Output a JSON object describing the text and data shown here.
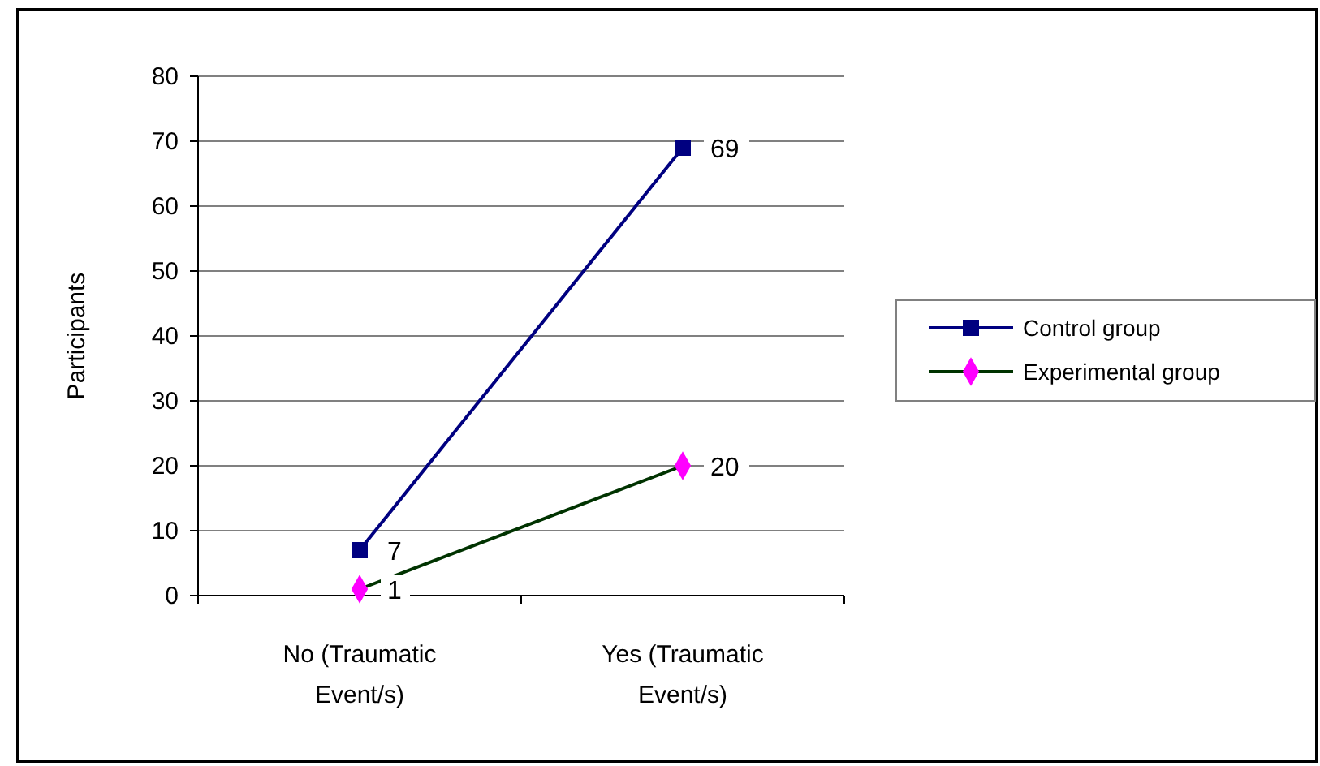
{
  "chart_data": {
    "type": "line",
    "ylabel": "Participants",
    "categories": [
      "No (Traumatic Event/s)",
      "Yes (Traumatic Event/s)"
    ],
    "series": [
      {
        "name": "Control group",
        "color": "#000080",
        "colors": [
          "#000080",
          "#000080"
        ],
        "marker": "square",
        "values": [
          7,
          69
        ]
      },
      {
        "name": "Experimental group",
        "color": "#003300",
        "colors": [
          "#ff00ff",
          "#ff00ff"
        ],
        "marker": "diamond",
        "values": [
          1,
          20
        ]
      }
    ],
    "ylim": [
      0,
      80
    ],
    "yticks": [
      0,
      10,
      20,
      30,
      40,
      50,
      60,
      70,
      80
    ],
    "grid": "y",
    "legend": "right",
    "data_labels": true
  }
}
